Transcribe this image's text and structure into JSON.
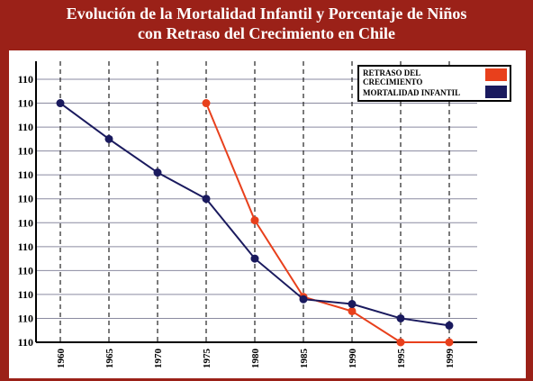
{
  "title_line1": "Evolución de la Mortalidad Infantil y Porcentaje de Niños",
  "title_line2": "con Retraso del Crecimiento en Chile",
  "legend": {
    "retraso_line1": "RETRASO DEL",
    "retraso_line2": "CRECIMIENTO",
    "mortalidad": "MORTALIDAD INFANTIL"
  },
  "colors": {
    "background": "#9b2118",
    "retraso": "#e8401c",
    "mortalidad": "#1a1a5e",
    "grid": "#8a8aa0"
  },
  "chart_data": {
    "type": "line",
    "title": "Evolución de la Mortalidad Infantil y Porcentaje de Niños con Retraso del Crecimiento en Chile",
    "xlabel": "",
    "ylabel": "",
    "grid": true,
    "legend_position": "top-right",
    "x": [
      "1960",
      "1965",
      "1970",
      "1975",
      "1980",
      "1985",
      "1990",
      "1995",
      "1999"
    ],
    "y_tick_labels": [
      "110",
      "110",
      "110",
      "110",
      "110",
      "110",
      "110",
      "110",
      "110",
      "110",
      "110",
      "110"
    ],
    "ylim": [
      0,
      11
    ],
    "series": [
      {
        "name": "MORTALIDAD INFANTIL",
        "values": [
          10,
          8.5,
          7.1,
          6,
          3.5,
          1.8,
          1.6,
          1,
          0.7
        ]
      },
      {
        "name": "RETRASO DEL CRECIMIENTO",
        "values": [
          null,
          null,
          null,
          10,
          5.1,
          1.9,
          1.3,
          0,
          0
        ]
      }
    ]
  }
}
